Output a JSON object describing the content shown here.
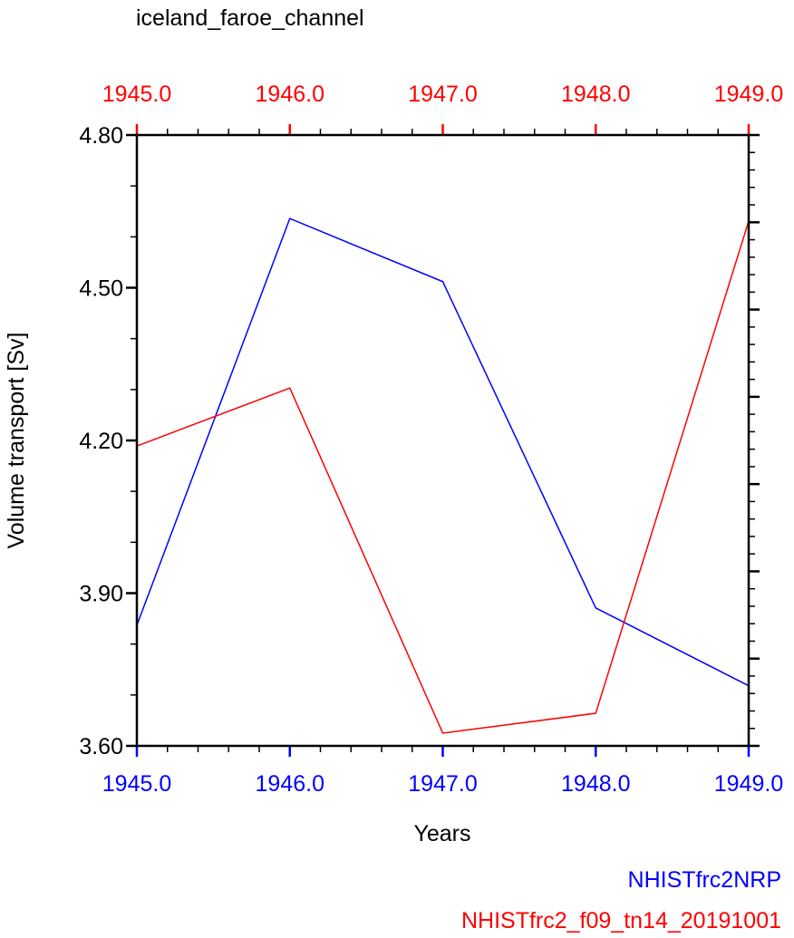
{
  "chart_data": {
    "type": "line",
    "title": "iceland_faroe_channel",
    "xlabel": "Years",
    "ylabel": "Volume transport [Sv]",
    "x": [
      1945,
      1946,
      1947,
      1948,
      1949
    ],
    "xlim": [
      1945,
      1949
    ],
    "ylim": [
      3.6,
      4.8
    ],
    "x_tick_labels": [
      "1945.0",
      "1946.0",
      "1947.0",
      "1948.0",
      "1949.0"
    ],
    "y_tick_labels": [
      "3.60",
      "3.90",
      "4.20",
      "4.50",
      "4.80"
    ],
    "y_ticks": [
      3.6,
      3.9,
      4.2,
      4.5,
      4.8
    ],
    "grid": false,
    "legend_position": "bottom-right",
    "series": [
      {
        "name": "NHISTfrc2NRP",
        "color": "#0000ff",
        "values": [
          3.837,
          4.636,
          4.512,
          3.871,
          3.718
        ]
      },
      {
        "name": "NHISTfrc2_f09_tn14_20191001",
        "color": "#ff0000",
        "values": [
          4.189,
          4.303,
          3.625,
          3.664,
          4.631
        ]
      }
    ],
    "top_axis_color": "#ff0000",
    "bottom_axis_color": "#0000ff"
  }
}
